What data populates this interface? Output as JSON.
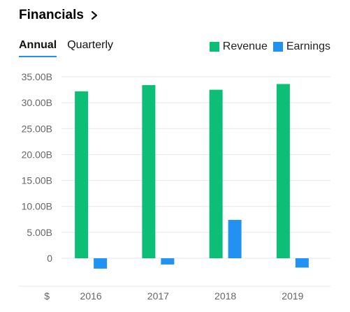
{
  "header": {
    "title": "Financials"
  },
  "tabs": [
    {
      "label": "Annual",
      "active": true
    },
    {
      "label": "Quarterly",
      "active": false
    }
  ],
  "currency_symbol": "$",
  "colors": {
    "revenue": "#0dbf76",
    "earnings": "#2192f2",
    "tab_underline": "#1f8ff0"
  },
  "chart_data": {
    "type": "bar",
    "categories": [
      "2016",
      "2017",
      "2018",
      "2019"
    ],
    "series": [
      {
        "name": "Revenue",
        "values": [
          32.2,
          33.4,
          32.5,
          33.6
        ]
      },
      {
        "name": "Earnings",
        "values": [
          -2.0,
          -1.2,
          7.4,
          -1.8
        ]
      }
    ],
    "yticks": [
      "35.00B",
      "30.00B",
      "25.00B",
      "20.00B",
      "15.00B",
      "10.00B",
      "5.00B",
      "0"
    ],
    "ytick_values": [
      35,
      30,
      25,
      20,
      15,
      10,
      5,
      0
    ],
    "ylim": [
      -5,
      35
    ],
    "units": "B",
    "grid": true,
    "legend_position": "top-right"
  }
}
